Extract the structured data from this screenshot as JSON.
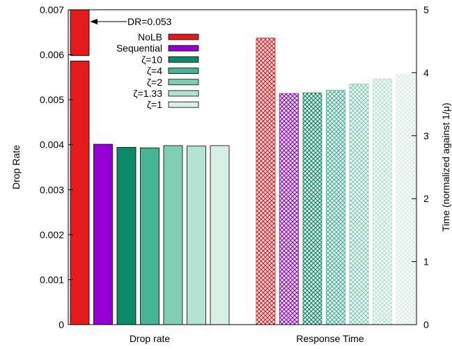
{
  "chart_data": {
    "type": "bar",
    "categories": [
      "Drop rate",
      "Response Time"
    ],
    "series": [
      {
        "name": "NoLB",
        "color": "#e41a1c",
        "values": [
          0.053,
          4.55
        ]
      },
      {
        "name": "Sequential",
        "color": "#9400d3",
        "values": [
          0.00401,
          3.67
        ]
      },
      {
        "name": "ζ=10",
        "color": "#0a8a66",
        "values": [
          0.00394,
          3.68
        ]
      },
      {
        "name": "ζ=4",
        "color": "#45b596",
        "values": [
          0.00393,
          3.72
        ]
      },
      {
        "name": "ζ=2",
        "color": "#82ceb5",
        "values": [
          0.00398,
          3.82
        ]
      },
      {
        "name": "ζ=1.33",
        "color": "#b5e3d3",
        "values": [
          0.00397,
          3.9
        ]
      },
      {
        "name": "ζ=1",
        "color": "#d8efe6",
        "values": [
          0.00398,
          3.97
        ]
      }
    ],
    "pattern": [
      "solid",
      "crosshatch"
    ],
    "ylabel": "Drop Rate",
    "y2label": "Time (normalized against 1/μ)",
    "ylim": [
      0,
      0.007
    ],
    "y2lim": [
      0,
      5
    ],
    "yticks": [
      "0",
      "0.001",
      "0.002",
      "0.003",
      "0.004",
      "0.005",
      "0.006",
      "0.007"
    ],
    "y2ticks": [
      "0",
      "1",
      "2",
      "3",
      "4",
      "5"
    ],
    "annotation": {
      "text": "DR=0.053",
      "value": 0.053
    },
    "axis_break": true,
    "grid": false,
    "legend_position": "top-left"
  }
}
